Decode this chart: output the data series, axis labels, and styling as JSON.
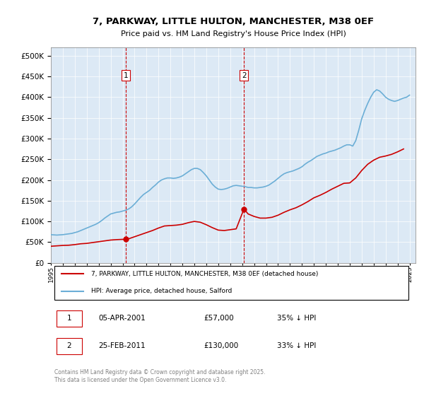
{
  "title": "7, PARKWAY, LITTLE HULTON, MANCHESTER, M38 0EF",
  "subtitle": "Price paid vs. HM Land Registry's House Price Index (HPI)",
  "ylabel_vals": [
    0,
    50000,
    100000,
    150000,
    200000,
    250000,
    300000,
    350000,
    400000,
    450000,
    500000
  ],
  "ylim": [
    0,
    520000
  ],
  "xlim_start": 1995.0,
  "xlim_end": 2025.5,
  "background_color": "#dce9f5",
  "plot_bg": "#dce9f5",
  "hpi_color": "#6baed6",
  "price_color": "#cc0000",
  "dashed_line_color": "#cc0000",
  "sale1_x": 2001.27,
  "sale1_y": 57000,
  "sale2_x": 2011.15,
  "sale2_y": 130000,
  "legend_house": "7, PARKWAY, LITTLE HULTON, MANCHESTER, M38 0EF (detached house)",
  "legend_hpi": "HPI: Average price, detached house, Salford",
  "annotation1": "1",
  "annotation2": "2",
  "table_row1": [
    "1",
    "05-APR-2001",
    "£57,000",
    "35% ↓ HPI"
  ],
  "table_row2": [
    "2",
    "25-FEB-2011",
    "£130,000",
    "33% ↓ HPI"
  ],
  "footer": "Contains HM Land Registry data © Crown copyright and database right 2025.\nThis data is licensed under the Open Government Licence v3.0.",
  "hpi_data_x": [
    1995.0,
    1995.25,
    1995.5,
    1995.75,
    1996.0,
    1996.25,
    1996.5,
    1996.75,
    1997.0,
    1997.25,
    1997.5,
    1997.75,
    1998.0,
    1998.25,
    1998.5,
    1998.75,
    1999.0,
    1999.25,
    1999.5,
    1999.75,
    2000.0,
    2000.25,
    2000.5,
    2000.75,
    2001.0,
    2001.25,
    2001.5,
    2001.75,
    2002.0,
    2002.25,
    2002.5,
    2002.75,
    2003.0,
    2003.25,
    2003.5,
    2003.75,
    2004.0,
    2004.25,
    2004.5,
    2004.75,
    2005.0,
    2005.25,
    2005.5,
    2005.75,
    2006.0,
    2006.25,
    2006.5,
    2006.75,
    2007.0,
    2007.25,
    2007.5,
    2007.75,
    2008.0,
    2008.25,
    2008.5,
    2008.75,
    2009.0,
    2009.25,
    2009.5,
    2009.75,
    2010.0,
    2010.25,
    2010.5,
    2010.75,
    2011.0,
    2011.25,
    2011.5,
    2011.75,
    2012.0,
    2012.25,
    2012.5,
    2012.75,
    2013.0,
    2013.25,
    2013.5,
    2013.75,
    2014.0,
    2014.25,
    2014.5,
    2014.75,
    2015.0,
    2015.25,
    2015.5,
    2015.75,
    2016.0,
    2016.25,
    2016.5,
    2016.75,
    2017.0,
    2017.25,
    2017.5,
    2017.75,
    2018.0,
    2018.25,
    2018.5,
    2018.75,
    2019.0,
    2019.25,
    2019.5,
    2019.75,
    2020.0,
    2020.25,
    2020.5,
    2020.75,
    2021.0,
    2021.25,
    2021.5,
    2021.75,
    2022.0,
    2022.25,
    2022.5,
    2022.75,
    2023.0,
    2023.25,
    2023.5,
    2023.75,
    2024.0,
    2024.25,
    2024.5,
    2024.75,
    2025.0
  ],
  "hpi_data_y": [
    68000,
    67500,
    67000,
    67500,
    68000,
    69000,
    70000,
    71000,
    73000,
    75000,
    78000,
    81000,
    84000,
    87000,
    90000,
    93000,
    97000,
    102000,
    108000,
    113000,
    118000,
    120000,
    122000,
    123000,
    125000,
    127000,
    130000,
    135000,
    142000,
    150000,
    158000,
    165000,
    170000,
    175000,
    182000,
    188000,
    195000,
    200000,
    203000,
    205000,
    205000,
    204000,
    205000,
    207000,
    210000,
    215000,
    220000,
    225000,
    228000,
    228000,
    225000,
    218000,
    210000,
    200000,
    190000,
    183000,
    178000,
    177000,
    178000,
    180000,
    183000,
    186000,
    187000,
    186000,
    185000,
    184000,
    182000,
    182000,
    181000,
    181000,
    182000,
    183000,
    185000,
    188000,
    193000,
    198000,
    204000,
    210000,
    215000,
    218000,
    220000,
    222000,
    225000,
    228000,
    232000,
    238000,
    243000,
    247000,
    252000,
    257000,
    260000,
    263000,
    265000,
    268000,
    270000,
    272000,
    275000,
    278000,
    282000,
    285000,
    285000,
    282000,
    295000,
    320000,
    348000,
    368000,
    385000,
    400000,
    412000,
    418000,
    415000,
    408000,
    400000,
    395000,
    392000,
    390000,
    392000,
    395000,
    398000,
    400000,
    405000
  ],
  "price_data_x": [
    1995.0,
    1995.5,
    1996.0,
    1996.5,
    1997.0,
    1997.5,
    1998.0,
    1998.5,
    1999.0,
    1999.5,
    2000.0,
    2000.5,
    2001.27,
    2001.5,
    2002.0,
    2002.5,
    2003.0,
    2003.5,
    2004.0,
    2004.5,
    2005.0,
    2005.5,
    2006.0,
    2006.5,
    2007.0,
    2007.5,
    2008.0,
    2008.5,
    2009.0,
    2009.5,
    2010.0,
    2010.5,
    2011.15,
    2011.5,
    2012.0,
    2012.5,
    2013.0,
    2013.5,
    2014.0,
    2014.5,
    2015.0,
    2015.5,
    2016.0,
    2016.5,
    2017.0,
    2017.5,
    2018.0,
    2018.5,
    2019.0,
    2019.5,
    2020.0,
    2020.5,
    2021.0,
    2021.5,
    2022.0,
    2022.5,
    2023.0,
    2023.5,
    2024.0,
    2024.5
  ],
  "price_data_y": [
    40000,
    41000,
    42000,
    42500,
    44000,
    46000,
    47000,
    49000,
    51000,
    53000,
    55000,
    56000,
    57000,
    58000,
    63000,
    68000,
    73000,
    78000,
    84000,
    89000,
    90000,
    91000,
    93000,
    97000,
    100000,
    98000,
    92000,
    85000,
    79000,
    78000,
    80000,
    82000,
    130000,
    118000,
    112000,
    108000,
    108000,
    110000,
    115000,
    122000,
    128000,
    133000,
    140000,
    148000,
    157000,
    163000,
    170000,
    178000,
    185000,
    192000,
    193000,
    205000,
    223000,
    238000,
    248000,
    255000,
    258000,
    262000,
    268000,
    275000
  ]
}
